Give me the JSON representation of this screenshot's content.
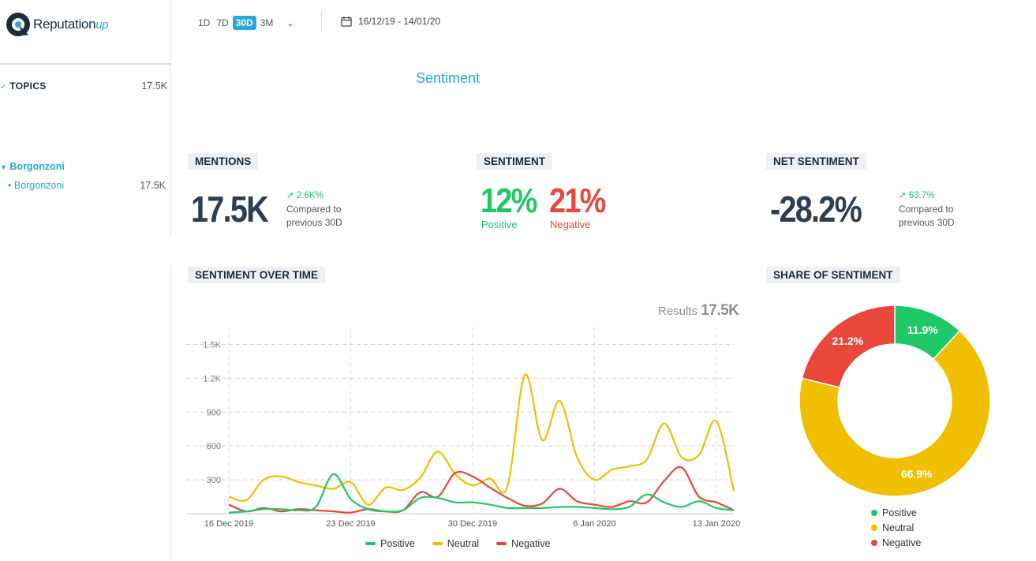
{
  "header": {
    "logo_text": "Reputation",
    "logo_suffix": "up",
    "range_tabs": [
      "1D",
      "7D",
      "30D",
      "3M"
    ],
    "active_range": "30D",
    "date_range": "16/12/19 - 14/01/20"
  },
  "sidebar": {
    "topics_label": "TOPICS",
    "topics_count": "17.5K",
    "group_label": "Borgonzoni",
    "items": [
      {
        "label": "Borgonzoni",
        "count": "17.5K"
      }
    ]
  },
  "page_title": "Sentiment",
  "mentions": {
    "label": "MENTIONS",
    "value": "17.5K",
    "delta": "2.6K%",
    "compared": "Compared to",
    "period": "previous 30D"
  },
  "sentiment": {
    "label": "SENTIMENT",
    "positive_pct": "12%",
    "positive_label": "Positive",
    "negative_pct": "21%",
    "negative_label": "Negative"
  },
  "net_sentiment": {
    "label": "NET SENTIMENT",
    "value": "-28.2%",
    "delta": "63.7%",
    "compared": "Compared to",
    "period": "previous 30D"
  },
  "over_time": {
    "label": "SENTIMENT OVER TIME",
    "results_label": "Results",
    "results_value": "17.5K"
  },
  "share": {
    "label": "SHARE OF SENTIMENT"
  },
  "colors": {
    "positive": "#1ec869",
    "neutral": "#f0bf00",
    "negative": "#e8473c",
    "accent": "#27a9d6"
  },
  "chart_data": [
    {
      "type": "line",
      "x": [
        "16 Dec 2019",
        "17 Dec 2019",
        "18 Dec 2019",
        "19 Dec 2019",
        "20 Dec 2019",
        "21 Dec 2019",
        "22 Dec 2019",
        "23 Dec 2019",
        "24 Dec 2019",
        "25 Dec 2019",
        "26 Dec 2019",
        "27 Dec 2019",
        "28 Dec 2019",
        "29 Dec 2019",
        "30 Dec 2019",
        "31 Dec 2019",
        "1 Jan 2020",
        "2 Jan 2020",
        "3 Jan 2020",
        "4 Jan 2020",
        "5 Jan 2020",
        "6 Jan 2020",
        "7 Jan 2020",
        "8 Jan 2020",
        "9 Jan 2020",
        "10 Jan 2020",
        "11 Jan 2020",
        "12 Jan 2020",
        "13 Jan 2020",
        "14 Jan 2020"
      ],
      "x_tick_labels": [
        "16 Dec 2019",
        "23 Dec 2019",
        "30 Dec 2019",
        "6 Jan 2020",
        "13 Jan 2020"
      ],
      "y_tick_labels": [
        "300",
        "600",
        "900",
        "1.2K",
        "1.5K"
      ],
      "ylim": [
        0,
        1650
      ],
      "grid": true,
      "legend": "bottom",
      "series": [
        {
          "name": "Positive",
          "values": [
            10,
            20,
            40,
            40,
            30,
            60,
            350,
            130,
            40,
            20,
            30,
            140,
            140,
            100,
            100,
            80,
            50,
            50,
            50,
            60,
            60,
            50,
            40,
            60,
            170,
            100,
            60,
            110,
            50,
            30
          ]
        },
        {
          "name": "Neutral",
          "values": [
            150,
            120,
            300,
            330,
            280,
            250,
            220,
            280,
            80,
            230,
            210,
            320,
            550,
            350,
            250,
            310,
            240,
            1230,
            650,
            1000,
            500,
            300,
            390,
            420,
            480,
            800,
            500,
            520,
            820,
            200
          ]
        },
        {
          "name": "Negative",
          "values": [
            80,
            20,
            50,
            20,
            40,
            30,
            20,
            10,
            40,
            20,
            30,
            190,
            150,
            360,
            330,
            230,
            140,
            70,
            90,
            220,
            110,
            80,
            60,
            110,
            100,
            290,
            410,
            150,
            100,
            30
          ]
        }
      ]
    },
    {
      "type": "pie",
      "donut": true,
      "labels": [
        "Positive",
        "Neutral",
        "Negative"
      ],
      "values": [
        11.9,
        66.9,
        21.2
      ],
      "value_labels": [
        "11.9%",
        "66.9%",
        "21.2%"
      ],
      "legend": "bottom"
    }
  ]
}
